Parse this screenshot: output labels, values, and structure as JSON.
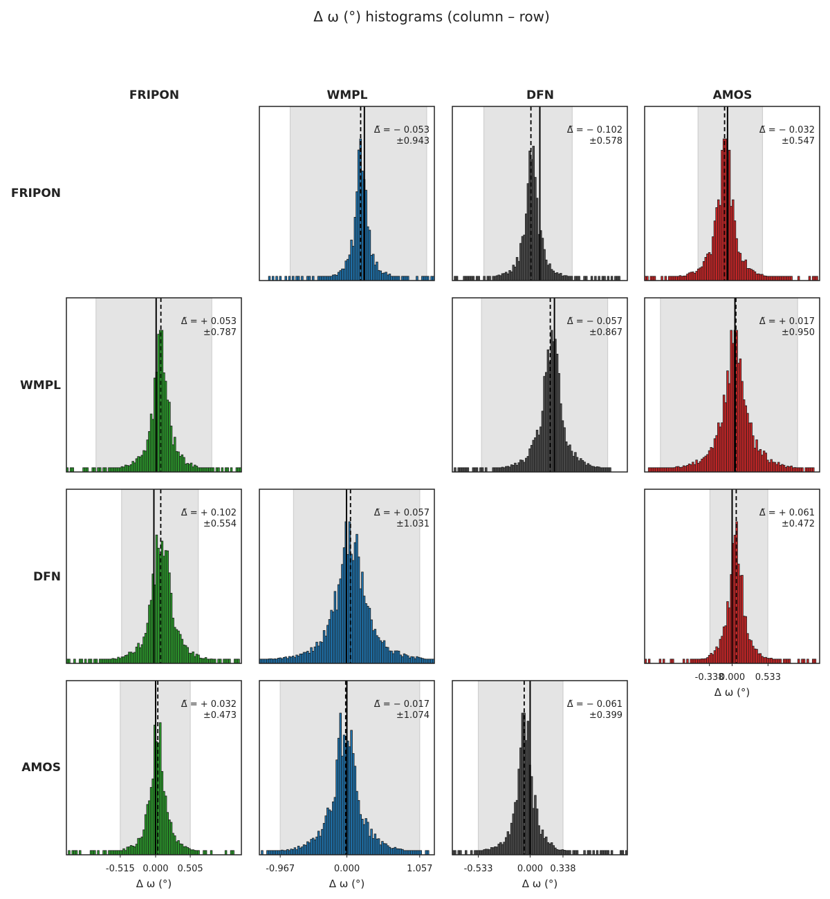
{
  "title": "Δ ω (°) histograms  (column – row)",
  "colors": {
    "FRIPON": "#2ca02c",
    "WMPL": "#1f77b4",
    "DFN": "#4d4d4d",
    "AMOS": "#d62728",
    "shade": "#e4e4e4",
    "edge": "#1a1a1a"
  },
  "chart_data": {
    "type": "histogram-matrix",
    "title": "Δ ω (°) histograms  (column – row)",
    "columns": [
      "FRIPON",
      "WMPL",
      "DFN",
      "AMOS"
    ],
    "rows": [
      "FRIPON",
      "WMPL",
      "DFN",
      "AMOS"
    ],
    "xlabel": "Δ ω (°)",
    "panels": [
      {
        "row": 0,
        "col": 1,
        "median": -0.053,
        "spread": 0.943,
        "label_median": "Δ̃ = − 0.053",
        "label_spread": "±0.943",
        "xlim": [
          -1.5,
          1.0
        ],
        "shade": [
          -1.06,
          0.89
        ],
        "peak_x": -0.04,
        "width": 0.075
      },
      {
        "row": 0,
        "col": 2,
        "median": -0.102,
        "spread": 0.578,
        "label_median": "Δ̃ = − 0.102",
        "label_spread": "±0.578",
        "xlim": [
          -1.0,
          1.0
        ],
        "shade": [
          -0.64,
          0.37
        ],
        "peak_x": -0.09,
        "width": 0.065
      },
      {
        "row": 0,
        "col": 3,
        "median": -0.032,
        "spread": 0.547,
        "label_median": "Δ̃ = − 0.032",
        "label_spread": "±0.547",
        "xlim": [
          -0.9,
          1.0
        ],
        "shade": [
          -0.32,
          0.38
        ],
        "peak_x": -0.02,
        "width": 0.08
      },
      {
        "row": 1,
        "col": 0,
        "median": 0.053,
        "spread": 0.787,
        "label_median": "Δ̃ = + 0.053",
        "label_spread": "±0.787",
        "xlim": [
          -1.0,
          0.95
        ],
        "shade": [
          -0.67,
          0.62
        ],
        "peak_x": 0.05,
        "width": 0.075
      },
      {
        "row": 1,
        "col": 2,
        "median": -0.057,
        "spread": 0.867,
        "label_median": "Δ̃ = − 0.057",
        "label_spread": "±0.867",
        "xlim": [
          -1.4,
          1.0
        ],
        "shade": [
          -1.0,
          0.73
        ],
        "peak_x": -0.04,
        "width": 0.11
      },
      {
        "row": 1,
        "col": 3,
        "median": 0.017,
        "spread": 0.95,
        "label_median": "Δ̃ = + 0.017",
        "label_spread": "±0.950",
        "xlim": [
          -1.6,
          1.5
        ],
        "shade": [
          -1.32,
          1.11
        ],
        "peak_x": 0.0,
        "width": 0.18
      },
      {
        "row": 2,
        "col": 0,
        "median": 0.102,
        "spread": 0.554,
        "label_median": "Δ̃ = + 0.102",
        "label_spread": "±0.554",
        "xlim": [
          -1.3,
          1.3
        ],
        "shade": [
          -0.48,
          0.66
        ],
        "peak_x": 0.11,
        "width": 0.12
      },
      {
        "row": 2,
        "col": 1,
        "median": 0.057,
        "spread": 1.031,
        "label_median": "Δ̃ = + 0.057",
        "label_spread": "±1.031",
        "xlim": [
          -1.25,
          1.26
        ],
        "shade": [
          -0.76,
          1.05
        ],
        "peak_x": 0.06,
        "width": 0.18
      },
      {
        "row": 2,
        "col": 3,
        "median": 0.061,
        "spread": 0.472,
        "label_median": "Δ̃ = + 0.061",
        "label_spread": "±0.472",
        "xlim": [
          -1.3,
          1.3
        ],
        "shade": [
          -0.33,
          0.53
        ],
        "peak_x": 0.06,
        "width": 0.09,
        "xticks": [
          -0.338,
          0.0,
          0.533
        ],
        "xtick_labels": [
          "-0.338",
          "0.000",
          "0.533"
        ]
      },
      {
        "row": 3,
        "col": 0,
        "median": 0.032,
        "spread": 0.473,
        "label_median": "Δ̃ = + 0.032",
        "label_spread": "±0.473",
        "xlim": [
          -1.3,
          1.25
        ],
        "shade": [
          -0.515,
          0.505
        ],
        "peak_x": 0.03,
        "width": 0.09,
        "xticks": [
          -0.515,
          0.0,
          0.505
        ],
        "xtick_labels": [
          "-0.515",
          "0.000",
          "0.505"
        ]
      },
      {
        "row": 3,
        "col": 1,
        "median": -0.017,
        "spread": 1.074,
        "label_median": "Δ̃ = − 0.017",
        "label_spread": "±1.074",
        "xlim": [
          -1.27,
          1.27
        ],
        "shade": [
          -0.967,
          1.057
        ],
        "peak_x": -0.02,
        "width": 0.15,
        "xticks": [
          -0.967,
          0.0,
          1.057
        ],
        "xtick_labels": [
          "-0.967",
          "0.000",
          "1.057"
        ]
      },
      {
        "row": 3,
        "col": 2,
        "median": -0.061,
        "spread": 0.399,
        "label_median": "Δ̃ = − 0.061",
        "label_spread": "±0.399",
        "xlim": [
          -0.8,
          1.0
        ],
        "shade": [
          -0.533,
          0.338
        ],
        "peak_x": -0.05,
        "width": 0.07,
        "xticks": [
          -0.533,
          0.0,
          0.338
        ],
        "xtick_labels": [
          "-0.533",
          "0.000",
          "0.338"
        ]
      }
    ]
  }
}
